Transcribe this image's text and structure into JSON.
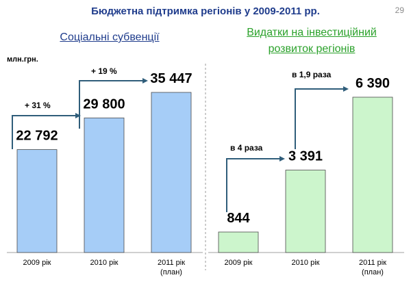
{
  "slide": {
    "title": "Бюджетна підтримка регіонів у 2009-2011 рр.",
    "page_number": "29",
    "unit_label": "млн.грн."
  },
  "colors": {
    "title": "#1f3c8c",
    "left_bar": "#a6cdf7",
    "right_bar": "#ccf5cc",
    "right_title": "#2aa12a",
    "arrow": "#2f5d7a"
  },
  "chart_data": [
    {
      "type": "bar",
      "title": "Соціальні субвенції",
      "categories": [
        "2009 рік",
        "2010 рік",
        "2011 рік (план)"
      ],
      "values": [
        22792,
        29800,
        35447
      ],
      "value_labels": [
        "22 792",
        "29 800",
        "35 447"
      ],
      "annotations": [
        "+ 31 %",
        "+ 19 %"
      ],
      "ylabel": "млн.грн.",
      "legend": "none",
      "grid": false
    },
    {
      "type": "bar",
      "title_lines": [
        "Видатки на інвестиційний",
        "розвиток регіонів"
      ],
      "categories": [
        "2009 рік",
        "2010 рік",
        "2011 рік (план)"
      ],
      "values": [
        844,
        3391,
        6390
      ],
      "value_labels": [
        "844",
        "3 391",
        "6 390"
      ],
      "annotations": [
        "в 4 раза",
        "в 1,9 раза"
      ],
      "legend": "none",
      "grid": false
    }
  ]
}
